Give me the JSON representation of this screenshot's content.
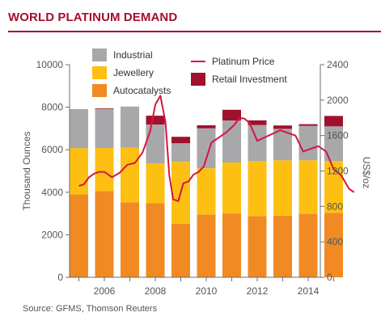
{
  "title": "WORLD PLATINUM DEMAND",
  "source": "Source: GFMS, Thomson Reuters",
  "colors": {
    "autocatalysts": "#f18a22",
    "jewellery": "#fdc012",
    "industrial": "#a8a8aa",
    "retail": "#a0112e",
    "price": "#d6153f",
    "brand": "#a50e2d"
  },
  "chart_data": {
    "type": "bar",
    "stacked": true,
    "title": "WORLD PLATINUM DEMAND",
    "xlabel": "",
    "ylabel": "Thousand Ounces",
    "y2label": "US$/oz",
    "ylim": [
      0,
      10000
    ],
    "y2lim": [
      0,
      2400
    ],
    "yticks": [
      "0",
      "2000",
      "4000",
      "6000",
      "8000",
      "10000"
    ],
    "y2ticks": [
      "0",
      "400",
      "800",
      "1200",
      "1600",
      "2000",
      "2400"
    ],
    "xticks": [
      "2006",
      "2008",
      "2010",
      "2012",
      "2014"
    ],
    "categories": [
      "2005",
      "2006",
      "2007",
      "2008",
      "2009",
      "2010",
      "2011",
      "2012",
      "2013",
      "2014",
      "2015"
    ],
    "series": [
      {
        "name": "Autocatalysts",
        "values": [
          3900,
          4050,
          3530,
          3480,
          2520,
          2950,
          3000,
          2880,
          2900,
          2990,
          3030
        ]
      },
      {
        "name": "Jewellery",
        "values": [
          2180,
          2030,
          2570,
          1870,
          2910,
          2180,
          2400,
          2580,
          2600,
          2510,
          2430
        ]
      },
      {
        "name": "Industrial",
        "values": [
          1830,
          1840,
          1930,
          1830,
          880,
          1880,
          1980,
          1700,
          1480,
          1620,
          1640
        ]
      },
      {
        "name": "Retail Investment",
        "values": [
          0,
          30,
          0,
          420,
          300,
          140,
          500,
          220,
          160,
          80,
          490
        ]
      }
    ],
    "line_series": {
      "name": "Platinum Price",
      "axis": "right",
      "x": [
        2005.0,
        2005.2,
        2005.4,
        2005.6,
        2005.8,
        2006.0,
        2006.3,
        2006.6,
        2006.9,
        2007.2,
        2007.5,
        2007.8,
        2008.0,
        2008.2,
        2008.4,
        2008.55,
        2008.7,
        2008.9,
        2009.1,
        2009.3,
        2009.5,
        2009.7,
        2009.9,
        2010.2,
        2010.5,
        2010.8,
        2011.1,
        2011.3,
        2011.5,
        2011.7,
        2012.0,
        2012.3,
        2012.6,
        2012.9,
        2013.2,
        2013.5,
        2013.8,
        2014.1,
        2014.4,
        2014.7,
        2015.0,
        2015.3,
        2015.6,
        2015.8
      ],
      "values": [
        1030,
        1050,
        1130,
        1170,
        1190,
        1190,
        1130,
        1180,
        1270,
        1290,
        1410,
        1650,
        1950,
        2050,
        1750,
        1150,
        880,
        860,
        1060,
        1080,
        1160,
        1190,
        1250,
        1520,
        1580,
        1640,
        1720,
        1800,
        1790,
        1740,
        1540,
        1580,
        1620,
        1660,
        1630,
        1600,
        1420,
        1450,
        1480,
        1420,
        1220,
        1150,
        1000,
        960
      ]
    },
    "legend": {
      "placement": "top",
      "entries": [
        "Industrial",
        "Jewellery",
        "Autocatalysts",
        "Platinum Price",
        "Retail Investment"
      ]
    },
    "grid": false
  }
}
